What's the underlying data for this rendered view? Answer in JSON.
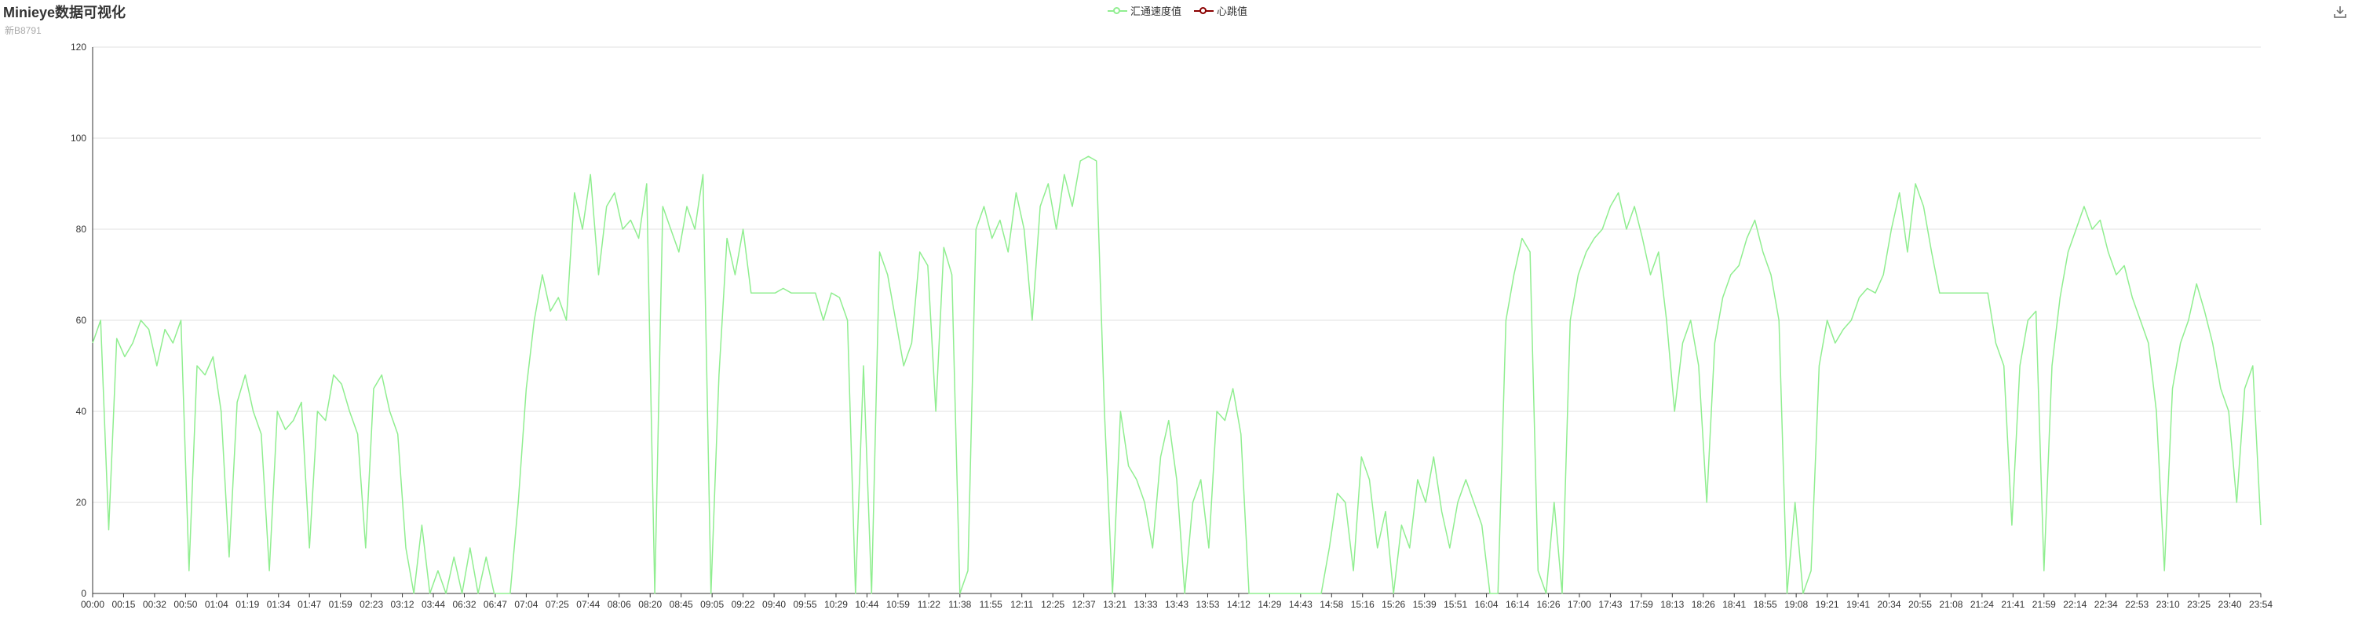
{
  "header": {
    "title": "Minieye数据可视化",
    "subtitle": "新B8791"
  },
  "legend": [
    {
      "name": "汇通速度值",
      "color": "#90EE90"
    },
    {
      "name": "心跳值",
      "color": "#8B0000"
    }
  ],
  "toolbox": {
    "icon": "download-icon"
  },
  "chart_data": {
    "type": "line",
    "ylim": [
      0,
      120
    ],
    "yticks": [
      0,
      20,
      40,
      60,
      80,
      100,
      120
    ],
    "grid": true,
    "legend_position": "top-center",
    "x_ticks": [
      "00:00",
      "00:15",
      "00:32",
      "00:50",
      "01:04",
      "01:19",
      "01:34",
      "01:47",
      "01:59",
      "02:23",
      "03:12",
      "03:44",
      "06:32",
      "06:47",
      "07:04",
      "07:25",
      "07:44",
      "08:06",
      "08:20",
      "08:45",
      "09:05",
      "09:22",
      "09:40",
      "09:55",
      "10:29",
      "10:44",
      "10:59",
      "11:22",
      "11:38",
      "11:55",
      "12:11",
      "12:25",
      "12:37",
      "13:21",
      "13:33",
      "13:43",
      "13:53",
      "14:12",
      "14:29",
      "14:43",
      "14:58",
      "15:16",
      "15:26",
      "15:39",
      "15:51",
      "16:04",
      "16:14",
      "16:26",
      "17:00",
      "17:43",
      "17:59",
      "18:13",
      "18:26",
      "18:41",
      "18:55",
      "19:08",
      "19:21",
      "19:41",
      "20:34",
      "20:55",
      "21:08",
      "21:24",
      "21:41",
      "21:59",
      "22:14",
      "22:34",
      "22:53",
      "23:10",
      "23:25",
      "23:40",
      "23:54"
    ],
    "series": [
      {
        "name": "汇通速度值",
        "color": "#90EE90",
        "values": [
          55,
          60,
          14,
          56,
          52,
          55,
          60,
          58,
          50,
          58,
          55,
          60,
          5,
          50,
          48,
          52,
          40,
          8,
          42,
          48,
          40,
          35,
          5,
          40,
          36,
          38,
          42,
          10,
          40,
          38,
          48,
          46,
          40,
          35,
          10,
          45,
          48,
          40,
          35,
          10,
          0,
          15,
          0,
          5,
          0,
          8,
          0,
          10,
          0,
          8,
          0,
          0,
          0,
          20,
          45,
          60,
          70,
          62,
          65,
          60,
          88,
          80,
          92,
          70,
          85,
          88,
          80,
          82,
          78,
          90,
          0,
          85,
          80,
          75,
          85,
          80,
          92,
          0,
          48,
          78,
          70,
          80,
          66,
          66,
          66,
          66,
          67,
          66,
          66,
          66,
          66,
          60,
          66,
          65,
          60,
          0,
          50,
          0,
          75,
          70,
          60,
          50,
          55,
          75,
          72,
          40,
          76,
          70,
          0,
          5,
          80,
          85,
          78,
          82,
          75,
          88,
          80,
          60,
          85,
          90,
          80,
          92,
          85,
          95,
          96,
          95,
          40,
          0,
          40,
          28,
          25,
          20,
          10,
          30,
          38,
          25,
          0,
          20,
          25,
          10,
          40,
          38,
          45,
          35,
          0,
          0,
          0,
          0,
          0,
          0,
          0,
          0,
          0,
          0,
          10,
          22,
          20,
          5,
          30,
          25,
          10,
          18,
          0,
          15,
          10,
          25,
          20,
          30,
          18,
          10,
          20,
          25,
          20,
          15,
          0,
          0,
          60,
          70,
          78,
          75,
          5,
          0,
          20,
          0,
          60,
          70,
          75,
          78,
          80,
          85,
          88,
          80,
          85,
          78,
          70,
          75,
          60,
          40,
          55,
          60,
          50,
          20,
          55,
          65,
          70,
          72,
          78,
          82,
          75,
          70,
          60,
          0,
          20,
          0,
          5,
          50,
          60,
          55,
          58,
          60,
          65,
          67,
          66,
          70,
          80,
          88,
          75,
          90,
          85,
          75,
          66,
          66,
          66,
          66,
          66,
          66,
          66,
          55,
          50,
          15,
          50,
          60,
          62,
          5,
          50,
          65,
          75,
          80,
          85,
          80,
          82,
          75,
          70,
          72,
          65,
          60,
          55,
          40,
          5,
          45,
          55,
          60,
          68,
          62,
          55,
          45,
          40,
          20,
          45,
          50,
          15
        ]
      },
      {
        "name": "心跳值",
        "color": "#8B0000",
        "values": []
      }
    ]
  }
}
